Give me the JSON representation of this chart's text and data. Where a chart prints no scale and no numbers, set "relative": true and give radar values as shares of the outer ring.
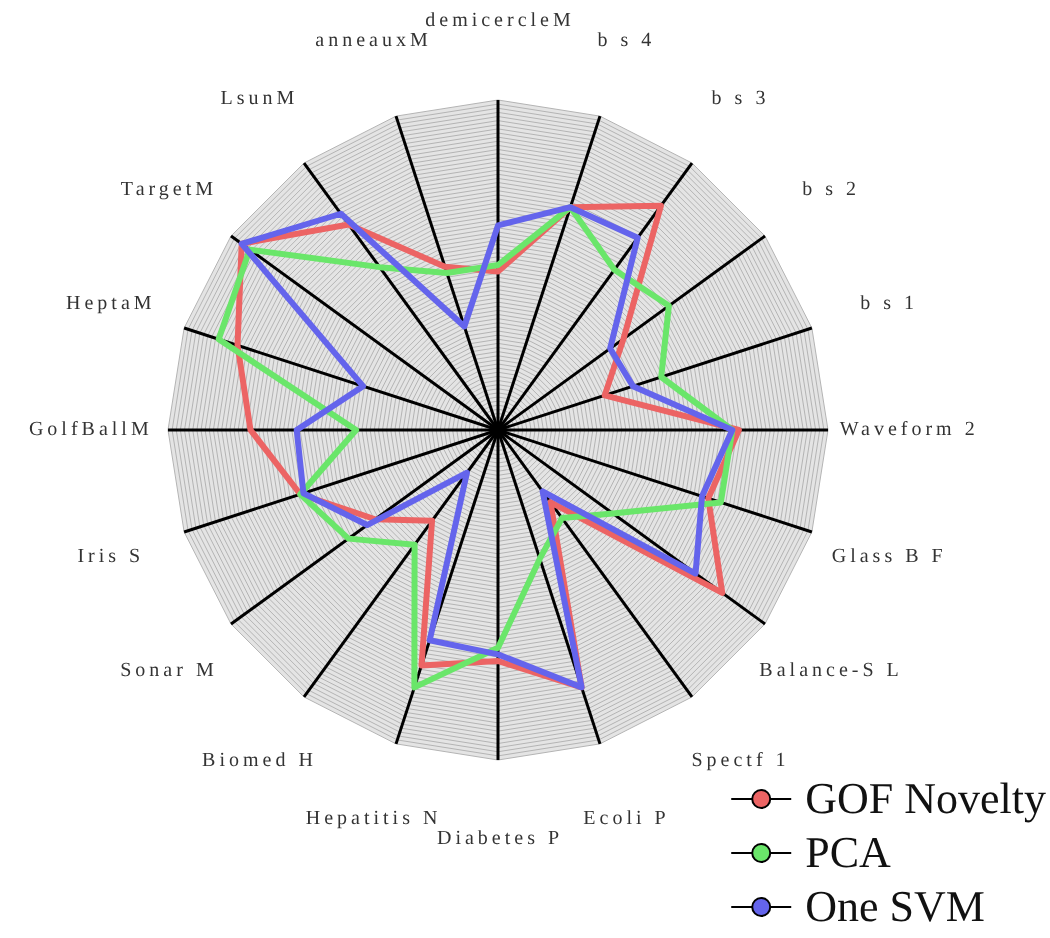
{
  "chart_data": {
    "type": "radar",
    "relative": true,
    "grid": true,
    "legend": "bottom right",
    "categories": [
      "demicercleM",
      "b s 4",
      "b s 3",
      "b s 2",
      "b s 1",
      "Waveform 2",
      "Glass B F",
      "Balance-S L",
      "Spectf 1",
      "Ecoli P",
      "Diabetes P",
      "Hepatitis N",
      "Biomed H",
      "Sonar M",
      "Iris S",
      "GolfBallM",
      "HeptaM",
      "TargetM",
      "LsunM",
      "anneauxM"
    ],
    "series": [
      {
        "name": "GOF Novelty",
        "color": "#ec6464",
        "values": [
          0.48,
          0.71,
          0.84,
          0.47,
          0.34,
          0.73,
          0.67,
          0.84,
          0.27,
          0.82,
          0.7,
          0.75,
          0.34,
          0.46,
          0.63,
          0.75,
          0.83,
          0.96,
          0.77,
          0.52
        ]
      },
      {
        "name": "PCA",
        "color": "#6ae66a",
        "values": [
          0.5,
          0.71,
          0.6,
          0.64,
          0.52,
          0.71,
          0.71,
          0.43,
          0.33,
          0.41,
          0.66,
          0.82,
          0.43,
          0.56,
          0.63,
          0.43,
          0.89,
          0.93,
          0.61,
          0.5
        ]
      },
      {
        "name": "One SVM",
        "color": "#6464ec",
        "values": [
          0.62,
          0.71,
          0.72,
          0.42,
          0.43,
          0.71,
          0.65,
          0.74,
          0.23,
          0.82,
          0.68,
          0.67,
          0.16,
          0.49,
          0.62,
          0.61,
          0.43,
          0.96,
          0.81,
          0.33
        ]
      }
    ]
  }
}
